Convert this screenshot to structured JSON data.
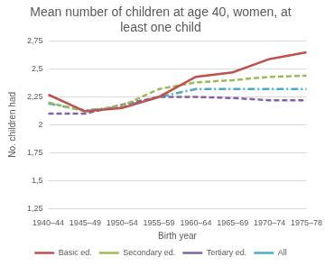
{
  "chart_data": {
    "type": "line",
    "title": "Mean number of children at age 40, women, at least one child",
    "x_label": "Birth year",
    "y_label": "No. children had",
    "categories": [
      "1940–44",
      "1945–49",
      "1950–54",
      "1955–59",
      "1960–64",
      "1965–69",
      "1970–74",
      "1975–78"
    ],
    "series": [
      {
        "name": "Basic ed.",
        "color": "#c0504d",
        "line_style": "solid",
        "marker": "none",
        "values": [
          2.27,
          2.12,
          2.15,
          2.25,
          2.43,
          2.47,
          2.59,
          2.65
        ]
      },
      {
        "name": "Secondary ed.",
        "color": "#9bbb59",
        "line_style": "dashed",
        "marker": "none",
        "values": [
          2.2,
          2.12,
          2.17,
          2.32,
          2.38,
          2.4,
          2.43,
          2.44
        ]
      },
      {
        "name": "Tertiary ed.",
        "color": "#8064a2",
        "line_style": "dashed",
        "marker": "none",
        "values": [
          2.1,
          2.1,
          2.18,
          2.25,
          2.25,
          2.24,
          2.22,
          2.22
        ]
      },
      {
        "name": "All",
        "color": "#4bacc6",
        "line_style": "dash-dot",
        "marker": "none",
        "values": [
          2.19,
          2.13,
          2.16,
          2.25,
          2.32,
          2.32,
          2.32,
          2.32
        ]
      }
    ],
    "ylim": [
      1.25,
      2.75
    ],
    "yticks": [
      {
        "value": 1.25,
        "label": "1,25"
      },
      {
        "value": 1.5,
        "label": "1,5"
      },
      {
        "value": 1.75,
        "label": "1,75"
      },
      2,
      {
        "value": 2.25,
        "label": "2,25"
      },
      {
        "value": 2.5,
        "label": "2,5"
      },
      {
        "value": 2.75,
        "label": "2,75"
      }
    ],
    "grid": true,
    "legend": "bottom"
  }
}
